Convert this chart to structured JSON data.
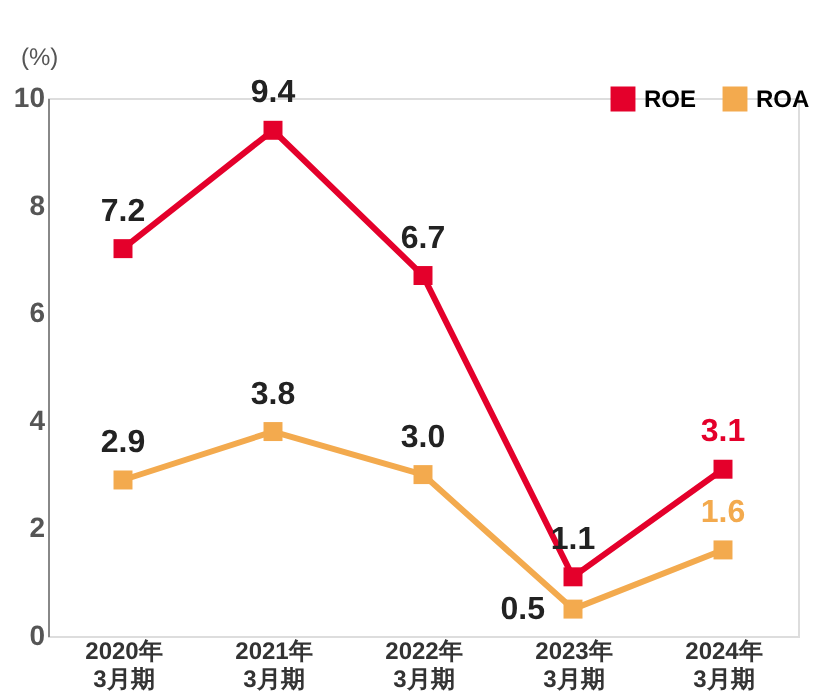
{
  "chart_data": {
    "type": "line",
    "ylabel": "(%)",
    "categories": [
      "2020年\n3月期",
      "2021年\n3月期",
      "2022年\n3月期",
      "2023年\n3月期",
      "2024年\n3月期"
    ],
    "series": [
      {
        "name": "ROE",
        "color": "#e4002b",
        "values": [
          7.2,
          9.4,
          6.7,
          1.1,
          3.1
        ],
        "value_labels": [
          "7.2",
          "9.4",
          "6.7",
          "1.1",
          "3.1"
        ]
      },
      {
        "name": "ROA",
        "color": "#f3aa4e",
        "values": [
          2.9,
          3.8,
          3.0,
          0.5,
          1.6
        ],
        "value_labels": [
          "2.9",
          "3.8",
          "3.0",
          "0.5",
          "1.6"
        ]
      }
    ],
    "ylim": [
      0,
      10
    ],
    "yticks": [
      0,
      2,
      4,
      6,
      8,
      10
    ],
    "grid": false,
    "legend": "top right",
    "marker": "square",
    "line_style": "solid"
  }
}
